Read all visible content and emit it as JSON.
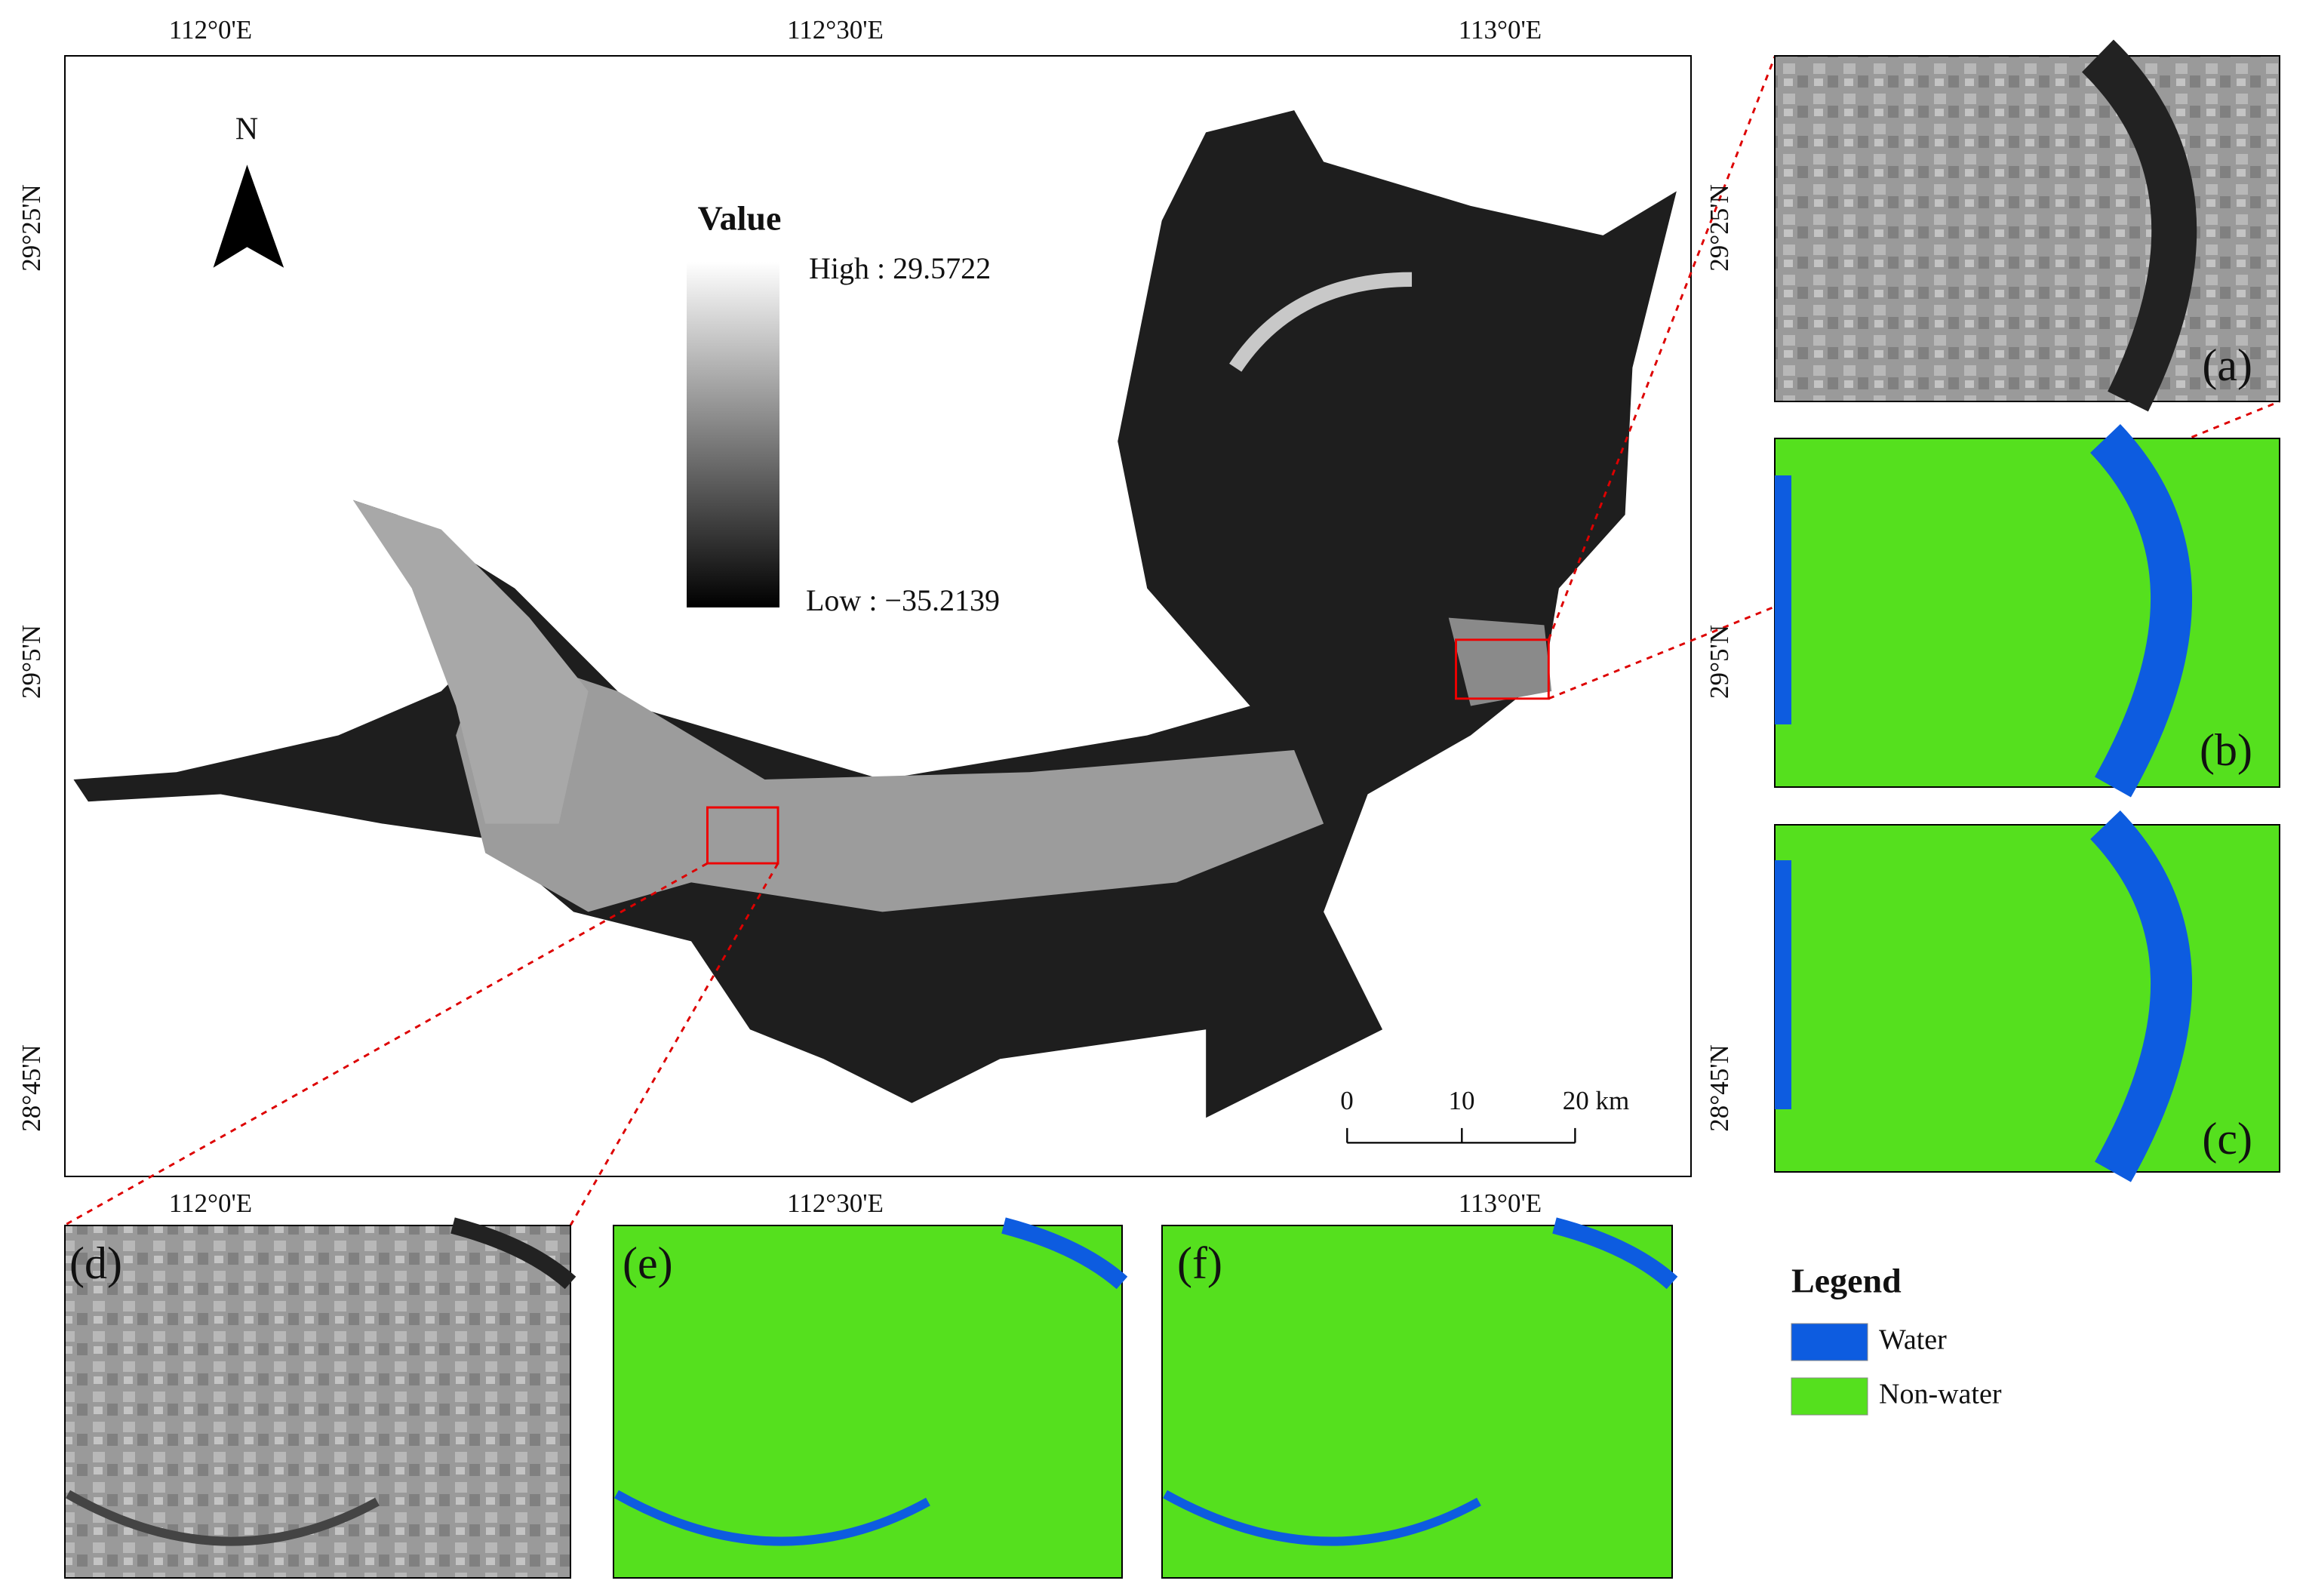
{
  "map": {
    "top_lon_labels": [
      "112°0'E",
      "112°30'E",
      "113°0'E"
    ],
    "bottom_lon_labels": [
      "112°0'E",
      "112°30'E",
      "113°0'E"
    ],
    "left_lat_labels": [
      "29°25'N",
      "29°5'N",
      "28°45'N"
    ],
    "right_lat_labels": [
      "29°25'N",
      "29°5'N",
      "28°45'N"
    ],
    "north": "N",
    "colorbar": {
      "title": "Value",
      "high": "High : 29.5722",
      "low": "Low : −35.2139"
    },
    "scale_bar": [
      "0",
      "10",
      "20 km"
    ]
  },
  "panels": [
    "(a)",
    "(b)",
    "(c)",
    "(d)",
    "(e)",
    "(f)"
  ],
  "legend": {
    "title": "Legend",
    "items": [
      "Water",
      "Non-water"
    ]
  }
}
